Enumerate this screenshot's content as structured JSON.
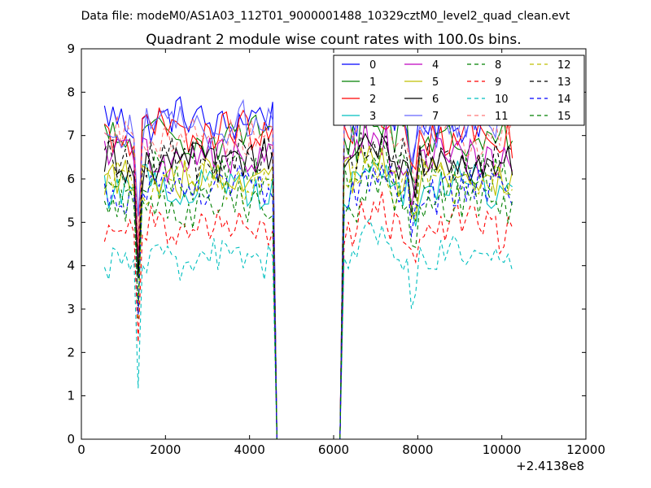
{
  "window": {
    "suptitle": "Data file: modeM0/AS1A03_112T01_9000001488_10329cztM0_level2_quad_clean.evt"
  },
  "chart_data": {
    "type": "line",
    "title": "Quadrant 2 module wise count rates with 100.0s bins.",
    "xlabel": "",
    "ylabel": "",
    "x_offset_label": "+2.4138e8",
    "xlim": [
      0,
      12000
    ],
    "ylim": [
      0,
      9
    ],
    "xticks": [
      0,
      2000,
      4000,
      6000,
      8000,
      10000,
      12000
    ],
    "yticks": [
      0,
      1,
      2,
      3,
      4,
      5,
      6,
      7,
      8,
      9
    ],
    "grid": false,
    "legend_position": "top-right",
    "legend_columns": 4,
    "gap": [
      4600,
      6200
    ],
    "bin_seconds": 100,
    "x_range": [
      550,
      10300
    ],
    "series": [
      {
        "name": "0",
        "color": "#0000ff",
        "dash": "solid",
        "level": 7.35
      },
      {
        "name": "1",
        "color": "#008000",
        "dash": "solid",
        "level": 6.95
      },
      {
        "name": "2",
        "color": "#ff0000",
        "dash": "solid",
        "level": 7.05
      },
      {
        "name": "3",
        "color": "#00bfbf",
        "dash": "solid",
        "level": 5.85
      },
      {
        "name": "4",
        "color": "#bf00bf",
        "dash": "solid",
        "level": 6.5
      },
      {
        "name": "5",
        "color": "#bfbf00",
        "dash": "solid",
        "level": 5.95
      },
      {
        "name": "6",
        "color": "#000000",
        "dash": "solid",
        "level": 6.35
      },
      {
        "name": "7",
        "color": "#6666ff",
        "dash": "solid",
        "level": 7.25
      },
      {
        "name": "8",
        "color": "#008000",
        "dash": "dashed",
        "level": 6.05
      },
      {
        "name": "9",
        "color": "#ff0000",
        "dash": "dashed",
        "level": 4.85
      },
      {
        "name": "10",
        "color": "#00bfbf",
        "dash": "dashed",
        "level": 4.15
      },
      {
        "name": "11",
        "color": "#ff7777",
        "dash": "dashed",
        "level": 7.05
      },
      {
        "name": "12",
        "color": "#bfbf00",
        "dash": "dashed",
        "level": 5.9
      },
      {
        "name": "13",
        "color": "#000000",
        "dash": "dashed",
        "level": 6.45
      },
      {
        "name": "14",
        "color": "#0000ff",
        "dash": "dashed",
        "level": 5.75
      },
      {
        "name": "15",
        "color": "#008000",
        "dash": "dashed",
        "level": 5.4
      }
    ]
  }
}
